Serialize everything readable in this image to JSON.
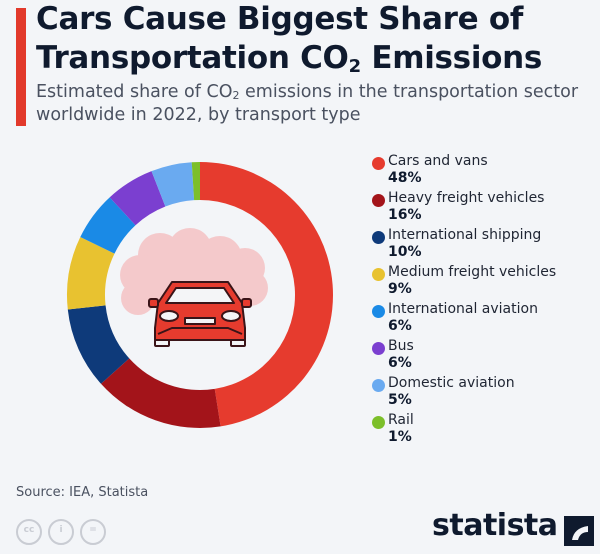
{
  "header": {
    "title_line1": "Cars Cause Biggest Share of",
    "title_line2_pre": "Transportation CO",
    "title_line2_sub": "2",
    "title_line2_post": " Emissions",
    "subtitle_pre": "Estimated share of CO",
    "subtitle_sub": "2",
    "subtitle_post": " emissions in the transportation sector worldwide in 2022, by transport type",
    "accent_color": "#e2392b"
  },
  "chart_data": {
    "type": "pie",
    "variant": "donut",
    "title": "Cars Cause Biggest Share of Transportation CO2 Emissions",
    "subtitle": "Estimated share of CO2 emissions in the transportation sector worldwide in 2022, by transport type",
    "unit": "%",
    "categories": [
      "Cars and vans",
      "Heavy freight vehicles",
      "International shipping",
      "Medium freight vehicles",
      "International aviation",
      "Bus",
      "Domestic aviation",
      "Rail"
    ],
    "values": [
      48,
      16,
      10,
      9,
      6,
      6,
      5,
      1
    ],
    "colors": [
      "#e63b2e",
      "#a3141a",
      "#0e3a7a",
      "#e8c230",
      "#1a8ae6",
      "#7b3fd0",
      "#6aaaf0",
      "#7cbf2a"
    ],
    "start_angle_deg": 0,
    "direction": "clockwise",
    "legend_position": "right",
    "center_icon": "car-with-smoke-cloud"
  },
  "legend": {
    "items": [
      {
        "label": "Cars and vans",
        "value": "48%",
        "color": "#e63b2e"
      },
      {
        "label": "Heavy freight vehicles",
        "value": "16%",
        "color": "#a3141a"
      },
      {
        "label": "International shipping",
        "value": "10%",
        "color": "#0e3a7a"
      },
      {
        "label": "Medium freight vehicles",
        "value": "9%",
        "color": "#e8c230"
      },
      {
        "label": "International aviation",
        "value": "6%",
        "color": "#1a8ae6"
      },
      {
        "label": "Bus",
        "value": "6%",
        "color": "#7b3fd0"
      },
      {
        "label": "Domestic aviation",
        "value": "5%",
        "color": "#6aaaf0"
      },
      {
        "label": "Rail",
        "value": "1%",
        "color": "#7cbf2a"
      }
    ]
  },
  "footer": {
    "source": "Source: IEA, Statista",
    "cc_icons": [
      "cc",
      "by",
      "nd"
    ],
    "logo_text": "statista"
  }
}
